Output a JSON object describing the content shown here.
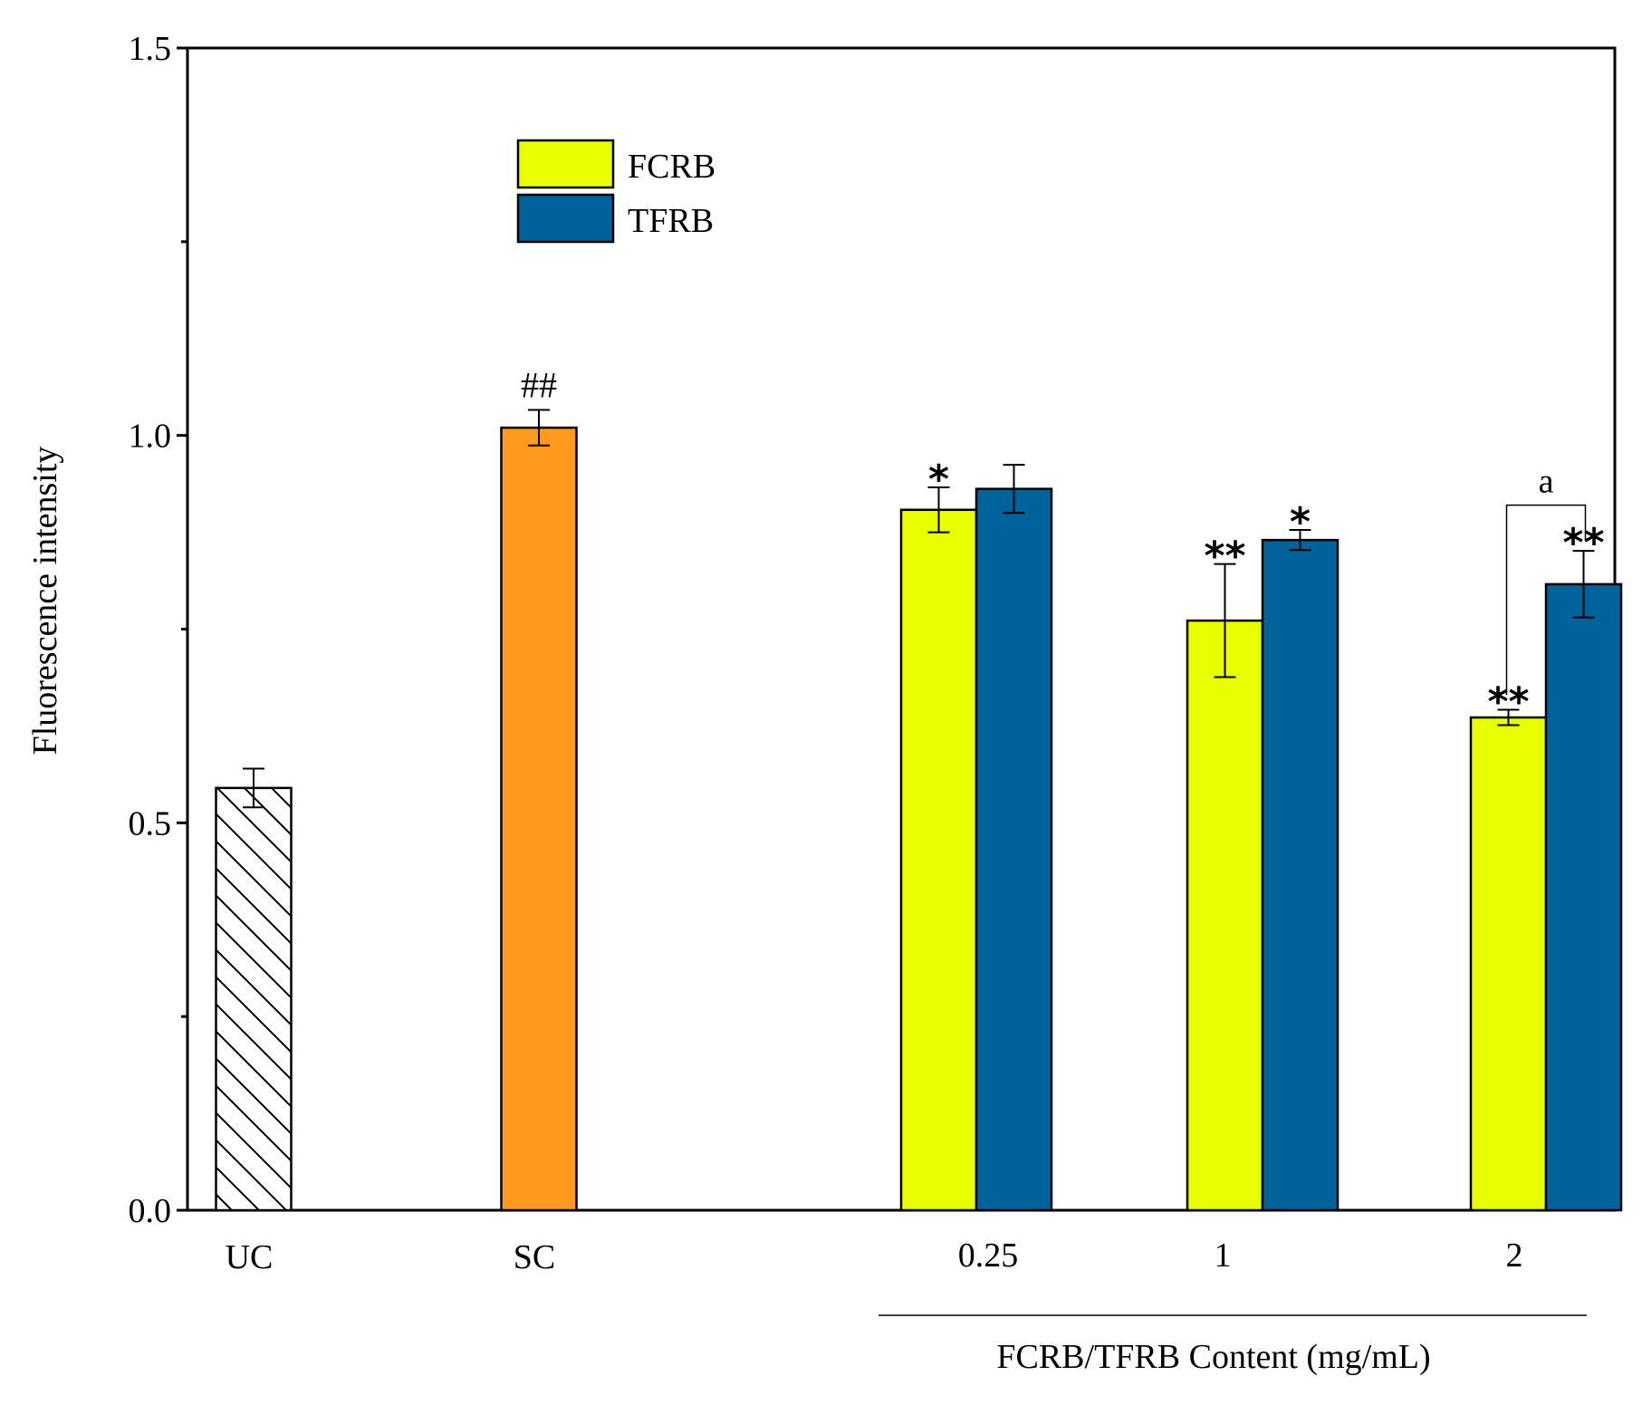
{
  "chart_data": {
    "type": "bar",
    "ylabel": "Fluorescence intensity",
    "xlabel": "FCRB/TFRB Content (mg/mL)",
    "ylim": [
      0,
      1.5
    ],
    "yticks": [
      "0.0",
      "0.5",
      "1.0",
      "1.5"
    ],
    "yticks_values": [
      0,
      0.5,
      1.0,
      1.5
    ],
    "legend": {
      "position": "top-left",
      "items": [
        {
          "name": "FCRB",
          "color": "#E8FF00"
        },
        {
          "name": "TFRB",
          "color": "#00629B"
        }
      ]
    },
    "controls": [
      {
        "label": "UC",
        "value": 0.545,
        "error": 0.025,
        "style": "hatched",
        "color": "#FFFFFF",
        "annotation": ""
      },
      {
        "label": "SC",
        "value": 1.01,
        "error": 0.023,
        "style": "solid",
        "color": "#FF9A1F",
        "annotation": "##"
      }
    ],
    "categories": [
      "0.25",
      "1",
      "2"
    ],
    "series": [
      {
        "name": "FCRB",
        "color": "#E8FF00",
        "values": [
          0.904,
          0.761,
          0.636
        ],
        "errors": [
          0.029,
          0.073,
          0.01
        ],
        "annotations": [
          "*",
          "**",
          "**"
        ]
      },
      {
        "name": "TFRB",
        "color": "#00629B",
        "values": [
          0.931,
          0.865,
          0.808
        ],
        "errors": [
          0.031,
          0.013,
          0.043
        ],
        "annotations": [
          "",
          "*",
          "**"
        ]
      }
    ],
    "bracket": {
      "label": "a",
      "category": "2"
    }
  }
}
